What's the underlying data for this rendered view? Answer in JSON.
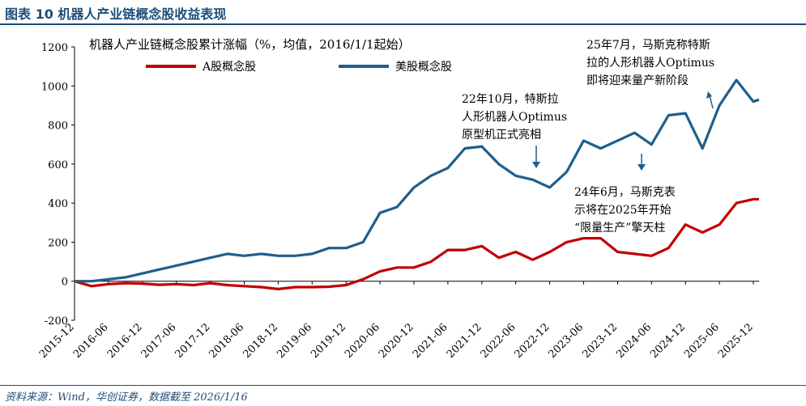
{
  "header": {
    "title": "图表 10   机器人产业链概念股收益表现"
  },
  "source": "资料来源：Wind，华创证券，数据截至 2026/1/16",
  "colors": {
    "brand": "#1f4e79",
    "a_share": "#c00000",
    "us_share": "#1f5f8b"
  },
  "chart_data": {
    "type": "line",
    "title": "机器人产业链概念股累计涨幅（%，均值，2016/1/1起始）",
    "ylim": [
      -200,
      1200
    ],
    "yticks": [
      -200,
      0,
      200,
      400,
      600,
      800,
      1000,
      1200
    ],
    "xticks": [
      "2015-12",
      "2016-06",
      "2016-12",
      "2017-06",
      "2017-12",
      "2018-06",
      "2018-12",
      "2019-06",
      "2019-12",
      "2020-06",
      "2020-12",
      "2021-06",
      "2021-12",
      "2022-06",
      "2022-12",
      "2023-06",
      "2023-12",
      "2024-06",
      "2024-12",
      "2025-06",
      "2025-12"
    ],
    "legend": "top-left",
    "grid": false,
    "x": [
      "2015-12",
      "2016-03",
      "2016-06",
      "2016-09",
      "2016-12",
      "2017-03",
      "2017-06",
      "2017-09",
      "2017-12",
      "2018-03",
      "2018-06",
      "2018-09",
      "2018-12",
      "2019-03",
      "2019-06",
      "2019-09",
      "2019-12",
      "2020-03",
      "2020-06",
      "2020-09",
      "2020-12",
      "2021-03",
      "2021-06",
      "2021-09",
      "2021-12",
      "2022-03",
      "2022-06",
      "2022-09",
      "2022-12",
      "2023-03",
      "2023-06",
      "2023-09",
      "2023-12",
      "2024-03",
      "2024-06",
      "2024-09",
      "2024-12",
      "2025-03",
      "2025-06",
      "2025-09",
      "2025-12",
      "2026-01"
    ],
    "series": [
      {
        "name": "A股概念股",
        "color": "#c00000",
        "values": [
          0,
          -25,
          -15,
          -10,
          -12,
          -18,
          -15,
          -20,
          -10,
          -20,
          -25,
          -30,
          -40,
          -30,
          -30,
          -28,
          -20,
          10,
          50,
          70,
          70,
          100,
          160,
          160,
          180,
          120,
          150,
          110,
          150,
          200,
          220,
          220,
          150,
          140,
          130,
          170,
          290,
          250,
          290,
          400,
          420,
          420
        ]
      },
      {
        "name": "美股概念股",
        "color": "#1f5f8b",
        "values": [
          0,
          0,
          10,
          20,
          40,
          60,
          80,
          100,
          120,
          140,
          130,
          140,
          130,
          130,
          140,
          170,
          170,
          200,
          350,
          380,
          480,
          540,
          580,
          680,
          690,
          600,
          540,
          520,
          480,
          560,
          720,
          680,
          720,
          760,
          700,
          850,
          860,
          680,
          900,
          1030,
          920,
          930
        ]
      }
    ],
    "annotations": [
      {
        "text": "22年10月，特斯拉人形机器人Optimus原型机正式亮相",
        "lines": [
          "22年10月，特斯拉",
          "人形机器人Optimus",
          "原型机正式亮相"
        ]
      },
      {
        "text": "25年7月，马斯克称特斯拉的人形机器人Optimus即将迎来量产新阶段",
        "lines": [
          "25年7月，马斯克称特斯",
          "拉的人形机器人Optimus",
          "即将迎来量产新阶段"
        ]
      },
      {
        "text": "24年6月，马斯克表示将在2025年开始“限量生产”擎天柱",
        "lines": [
          "24年6月，马斯克表",
          "示将在2025年开始",
          "“限量生产”擎天柱"
        ]
      }
    ]
  }
}
